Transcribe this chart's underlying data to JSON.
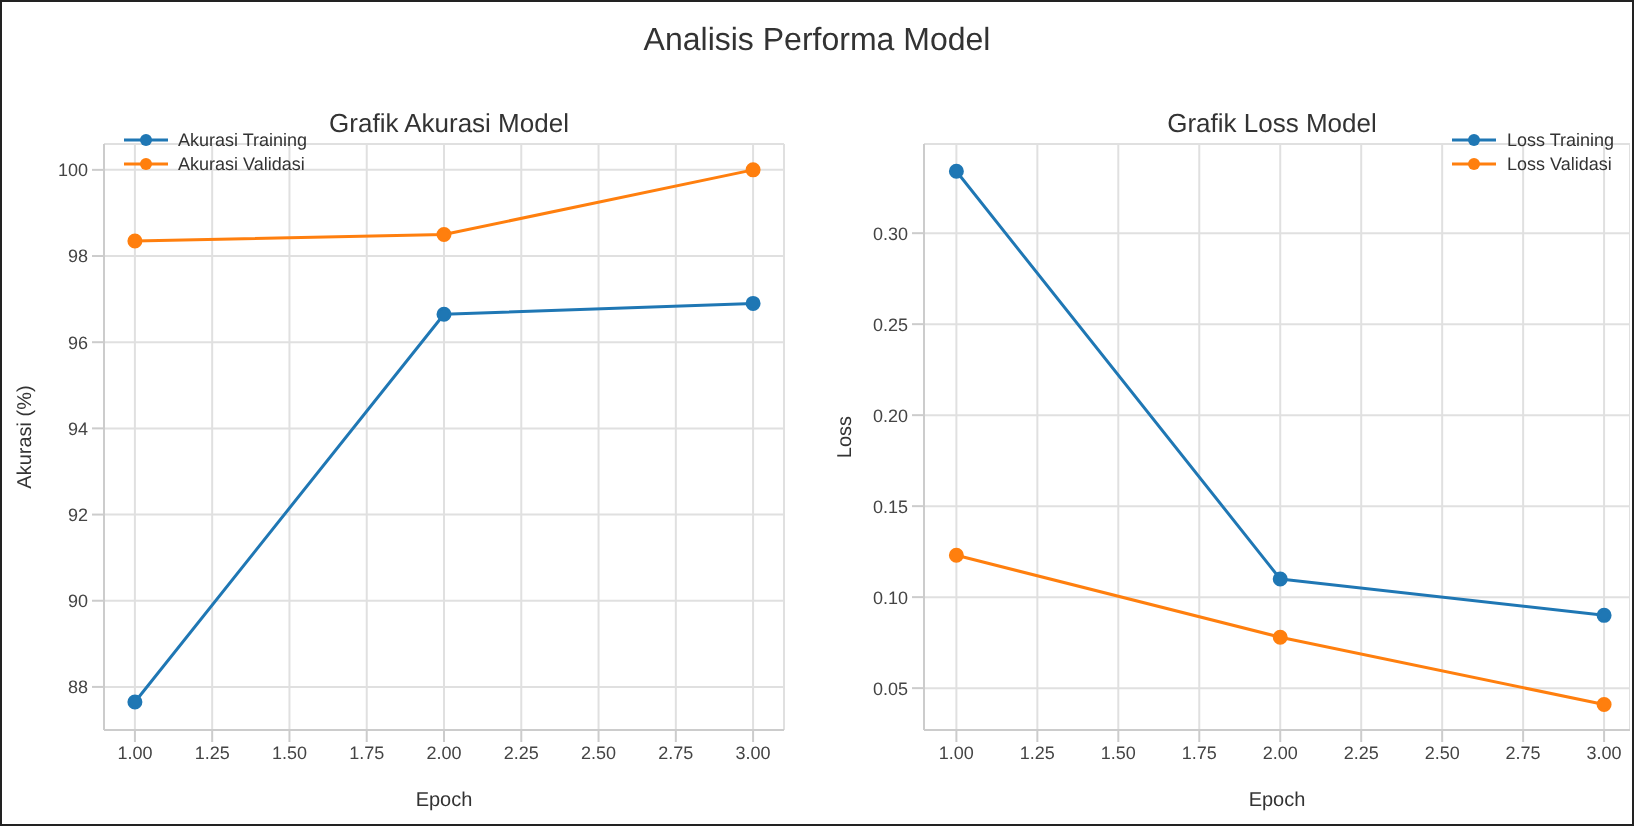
{
  "chart_data": [
    {
      "type": "line",
      "title": "Grafik Akurasi Model",
      "annotations": [
        "Analisis Performa Model"
      ],
      "xlabel": "Epoch",
      "ylabel": "Akurasi (%)",
      "x": [
        1,
        2,
        3
      ],
      "series": [
        {
          "name": "Akurasi Training",
          "color": "#1f77b4",
          "values": [
            87.65,
            96.65,
            96.9
          ]
        },
        {
          "name": "Akurasi Validasi",
          "color": "#ff7f0e",
          "values": [
            98.35,
            98.5,
            100.0
          ]
        }
      ],
      "xlim": [
        0.9,
        3.1
      ],
      "xticks": [
        {
          "value": 1,
          "label": "1.00"
        },
        {
          "value": 1.25,
          "label": "1.25"
        },
        {
          "value": 1.5,
          "label": "1.50"
        },
        {
          "value": 1.75,
          "label": "1.75"
        },
        {
          "value": 2,
          "label": "2.00"
        },
        {
          "value": 2.25,
          "label": "2.25"
        },
        {
          "value": 2.5,
          "label": "2.50"
        },
        {
          "value": 2.75,
          "label": "2.75"
        },
        {
          "value": 3,
          "label": "3.00"
        }
      ],
      "ylim": [
        87.0,
        100.6
      ],
      "yticks": [
        88,
        90,
        92,
        94,
        96,
        98,
        100
      ],
      "grid": true,
      "legend": "top left",
      "marker": "circle",
      "line_style": "solid"
    },
    {
      "type": "line",
      "title": "Grafik Loss Model",
      "xlabel": "Epoch",
      "ylabel": "Loss",
      "x": [
        1,
        2,
        3
      ],
      "series": [
        {
          "name": "Loss Training",
          "color": "#1f77b4",
          "values": [
            0.334,
            0.11,
            0.09
          ]
        },
        {
          "name": "Loss Validasi",
          "color": "#ff7f0e",
          "values": [
            0.123,
            0.078,
            0.041
          ]
        }
      ],
      "xlim": [
        0.9,
        3.08
      ],
      "xticks": [
        {
          "value": 1,
          "label": "1.00"
        },
        {
          "value": 1.25,
          "label": "1.25"
        },
        {
          "value": 1.5,
          "label": "1.50"
        },
        {
          "value": 1.75,
          "label": "1.75"
        },
        {
          "value": 2,
          "label": "2.00"
        },
        {
          "value": 2.25,
          "label": "2.25"
        },
        {
          "value": 2.5,
          "label": "2.50"
        },
        {
          "value": 2.75,
          "label": "2.75"
        },
        {
          "value": 3,
          "label": "3.00"
        }
      ],
      "ylim": [
        0.027,
        0.349
      ],
      "yticks": [
        {
          "value": 0.05,
          "label": "0.05"
        },
        {
          "value": 0.1,
          "label": "0.10"
        },
        {
          "value": 0.15,
          "label": "0.15"
        },
        {
          "value": 0.2,
          "label": "0.20"
        },
        {
          "value": 0.25,
          "label": "0.25"
        },
        {
          "value": 0.3,
          "label": "0.30"
        }
      ],
      "grid": true,
      "legend": "top right",
      "marker": "circle",
      "line_style": "solid"
    }
  ]
}
